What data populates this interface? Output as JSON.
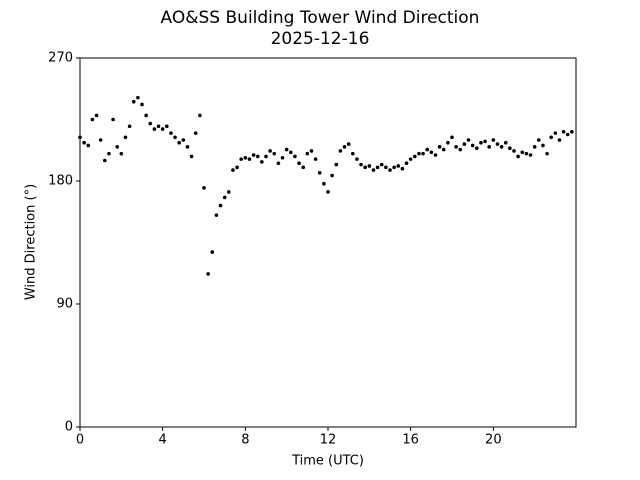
{
  "chart_data": {
    "type": "scatter",
    "title": "AO&SS Building Tower Wind Direction",
    "subtitle": "2025-12-16",
    "xlabel": "Time (UTC)",
    "ylabel": "Wind Direction (°)",
    "color": "#000000",
    "xlim": [
      0,
      24
    ],
    "xticks": [
      0,
      4,
      8,
      12,
      16,
      20
    ],
    "ylim": [
      0,
      270
    ],
    "yticks": [
      0,
      90,
      180,
      270
    ],
    "grid": false,
    "x": [
      0,
      0.2,
      0.4,
      0.6,
      0.8,
      1,
      1.2,
      1.4,
      1.6,
      1.8,
      2,
      2.2,
      2.4,
      2.6,
      2.8,
      3,
      3.2,
      3.4,
      3.6,
      3.8,
      4,
      4.2,
      4.4,
      4.6,
      4.8,
      5,
      5.2,
      5.4,
      5.6,
      5.8,
      6,
      6.2,
      6.4,
      6.6,
      6.8,
      7,
      7.2,
      7.4,
      7.6,
      7.8,
      8,
      8.2,
      8.4,
      8.6,
      8.8,
      9,
      9.2,
      9.4,
      9.6,
      9.8,
      10,
      10.2,
      10.4,
      10.6,
      10.8,
      11,
      11.2,
      11.4,
      11.6,
      11.8,
      12,
      12.2,
      12.4,
      12.6,
      12.8,
      13,
      13.2,
      13.4,
      13.6,
      13.8,
      14,
      14.2,
      14.4,
      14.6,
      14.8,
      15,
      15.2,
      15.4,
      15.6,
      15.8,
      16,
      16.2,
      16.4,
      16.6,
      16.8,
      17,
      17.2,
      17.4,
      17.6,
      17.8,
      18,
      18.2,
      18.4,
      18.6,
      18.8,
      19,
      19.2,
      19.4,
      19.6,
      19.8,
      20,
      20.2,
      20.4,
      20.6,
      20.8,
      21,
      21.2,
      21.4,
      21.6,
      21.8,
      22,
      22.2,
      22.4,
      22.6,
      22.8,
      23,
      23.2,
      23.4,
      23.6,
      23.8
    ],
    "values": [
      212,
      208,
      206,
      225,
      228,
      210,
      195,
      200,
      225,
      205,
      200,
      212,
      220,
      238,
      241,
      236,
      228,
      222,
      218,
      220,
      218,
      220,
      215,
      212,
      208,
      210,
      205,
      198,
      215,
      228,
      175,
      112,
      128,
      155,
      162,
      168,
      172,
      188,
      190,
      196,
      197,
      196,
      199,
      198,
      194,
      198,
      202,
      200,
      193,
      197,
      203,
      201,
      198,
      193,
      190,
      200,
      202,
      196,
      186,
      178,
      172,
      184,
      192,
      202,
      205,
      207,
      200,
      196,
      192,
      190,
      191,
      188,
      190,
      192,
      190,
      188,
      190,
      191,
      189,
      193,
      196,
      198,
      200,
      200,
      203,
      201,
      199,
      205,
      203,
      208,
      212,
      205,
      203,
      207,
      210,
      206,
      204,
      208,
      209,
      205,
      210,
      207,
      205,
      208,
      204,
      202,
      198,
      201,
      200,
      199,
      205,
      210,
      206,
      200,
      212,
      215,
      210,
      216,
      214,
      216
    ]
  }
}
